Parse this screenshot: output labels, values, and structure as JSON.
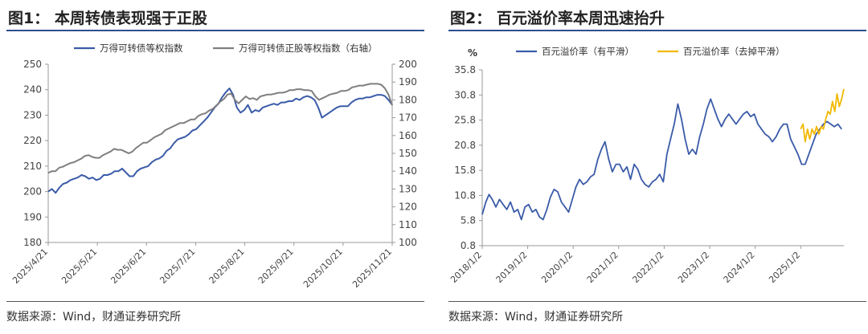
{
  "charts": [
    {
      "id": "p1",
      "title": "图1： 本周转债表现强于正股",
      "source": "数据来源：Wind，财通证券研究所",
      "chart_data": {
        "type": "line",
        "x_ticks": [
          "2025/4/21",
          "2025/5/21",
          "2025/6/21",
          "2025/7/21",
          "2025/8/21",
          "2025/9/21",
          "2025/10/21",
          "2025/11/21"
        ],
        "y_left": {
          "ticks": [
            180,
            190,
            200,
            210,
            220,
            230,
            240,
            250
          ],
          "range": [
            180,
            250
          ]
        },
        "y_right": {
          "ticks": [
            100,
            110,
            120,
            130,
            140,
            150,
            160,
            170,
            180,
            190,
            200
          ],
          "range": [
            100,
            200
          ]
        },
        "legend_position": "top",
        "grid": false,
        "series": [
          {
            "name": "万得可转债等权指数",
            "axis": "left",
            "color": "#3a5ba8",
            "values": [
              200,
              201,
              199.5,
              201.5,
              203,
              203.5,
              204.5,
              205,
              205.5,
              206.5,
              206,
              205,
              205.5,
              204.5,
              205,
              206.5,
              206.5,
              207,
              208,
              208,
              209,
              207.5,
              206,
              206,
              208,
              209,
              209.5,
              210,
              211.5,
              212.5,
              213,
              214,
              216,
              217,
              219,
              220.5,
              221,
              221.5,
              222.5,
              224,
              224.5,
              226,
              227.5,
              229,
              231,
              233,
              234.5,
              237,
              239,
              240.5,
              238,
              233,
              231,
              232,
              234,
              231,
              232,
              231.5,
              233,
              233.5,
              234,
              234.5,
              234,
              235,
              235,
              235.5,
              235.5,
              236.5,
              236,
              237,
              237.5,
              237,
              236,
              233,
              229,
              230,
              231,
              232,
              233,
              233.5,
              233.5,
              233.5,
              235,
              236,
              236.5,
              236.5,
              237,
              237,
              237.5,
              238,
              238,
              237.5,
              236,
              234
            ]
          },
          {
            "name": "万得可转债正股等权指数（右轴）",
            "axis": "right",
            "color": "#7f7f7f",
            "values": [
              139,
              140,
              140,
              142,
              142.5,
              143.5,
              144.5,
              145,
              146,
              147,
              148.5,
              149,
              148,
              147.5,
              147.5,
              149,
              150,
              151,
              152.5,
              152,
              152,
              151,
              150,
              151,
              153,
              154.5,
              156,
              156,
              157.5,
              159,
              160,
              161,
              163,
              164,
              165,
              166,
              167,
              167,
              168,
              169,
              169,
              171,
              172,
              172.5,
              174,
              175,
              177,
              179,
              180.5,
              183,
              183.5,
              180,
              178,
              180,
              182,
              180.5,
              181,
              180,
              182,
              182.5,
              183,
              183,
              183.5,
              184,
              184,
              184.5,
              185.5,
              185.5,
              186,
              186,
              185.5,
              185.5,
              185,
              182,
              180,
              181,
              182,
              183,
              183.5,
              184,
              185,
              185,
              185.5,
              187,
              187.5,
              188,
              188,
              188.5,
              189,
              189,
              189,
              188.5,
              186.5,
              183,
              177
            ]
          }
        ]
      }
    },
    {
      "id": "p2",
      "title": "图2： 百元溢价率本周迅速抬升",
      "source": "数据来源：Wind，财通证券研究所",
      "chart_data": {
        "type": "line",
        "ylabel": "%",
        "x_ticks": [
          "2018/1/2",
          "2019/1/2",
          "2020/1/2",
          "2021/1/2",
          "2022/1/2",
          "2023/1/2",
          "2024/1/2",
          "2025/1/2"
        ],
        "y": {
          "ticks": [
            0.8,
            5.8,
            10.8,
            15.8,
            20.8,
            25.8,
            30.8,
            35.8
          ],
          "range": [
            0.8,
            35.8
          ]
        },
        "x_range": [
          2018.0,
          2025.95
        ],
        "legend_position": "top",
        "grid": false,
        "series": [
          {
            "name": "百元溢价率（有平滑）",
            "color": "#3a5ba8",
            "x": [
              2018.0,
              2018.08,
              2018.15,
              2018.22,
              2018.3,
              2018.38,
              2018.46,
              2018.54,
              2018.62,
              2018.7,
              2018.78,
              2018.86,
              2018.94,
              2019.02,
              2019.1,
              2019.18,
              2019.26,
              2019.34,
              2019.42,
              2019.5,
              2019.58,
              2019.66,
              2019.74,
              2019.82,
              2019.9,
              2019.98,
              2020.06,
              2020.14,
              2020.22,
              2020.3,
              2020.38,
              2020.46,
              2020.54,
              2020.62,
              2020.7,
              2020.78,
              2020.86,
              2020.94,
              2021.02,
              2021.1,
              2021.18,
              2021.26,
              2021.34,
              2021.42,
              2021.5,
              2021.58,
              2021.66,
              2021.74,
              2021.82,
              2021.9,
              2021.98,
              2022.06,
              2022.14,
              2022.22,
              2022.3,
              2022.38,
              2022.46,
              2022.54,
              2022.62,
              2022.7,
              2022.78,
              2022.86,
              2022.94,
              2023.02,
              2023.1,
              2023.18,
              2023.26,
              2023.34,
              2023.42,
              2023.5,
              2023.58,
              2023.66,
              2023.74,
              2023.82,
              2023.9,
              2023.98,
              2024.06,
              2024.14,
              2024.22,
              2024.3,
              2024.38,
              2024.46,
              2024.54,
              2024.62,
              2024.7,
              2024.78,
              2024.86,
              2024.94,
              2025.02,
              2025.1,
              2025.18,
              2025.26,
              2025.34,
              2025.42,
              2025.5,
              2025.58,
              2025.66,
              2025.74,
              2025.82,
              2025.9
            ],
            "values": [
              7,
              9.5,
              11,
              10,
              8.5,
              10,
              9,
              8,
              9.5,
              7.5,
              8,
              6,
              8.5,
              9,
              7.5,
              8,
              6.5,
              6,
              8,
              10.5,
              12,
              11.5,
              9.5,
              8.5,
              7.5,
              10,
              12.5,
              14,
              13,
              13.5,
              14.5,
              15,
              18,
              20,
              21.5,
              18,
              15.5,
              17,
              17,
              15.5,
              16.5,
              14,
              17,
              16,
              14,
              13,
              12.5,
              13.5,
              14,
              15,
              13.5,
              19,
              22,
              25,
              29,
              26,
              22,
              19,
              20,
              19,
              22.5,
              25,
              28,
              30,
              28,
              26,
              24.5,
              26,
              27,
              26,
              25,
              26,
              27,
              27.5,
              26.5,
              27,
              25,
              24,
              23,
              22.5,
              21.5,
              22.5,
              24,
              25,
              25,
              22,
              20.5,
              19,
              17,
              17,
              19,
              21,
              23,
              24,
              25,
              25.5,
              25,
              24.5,
              25,
              24
            ]
          },
          {
            "name": "百元溢价率（去掉平滑）",
            "color": "#f2b800",
            "x": [
              2025.0,
              2025.05,
              2025.1,
              2025.15,
              2025.2,
              2025.25,
              2025.3,
              2025.35,
              2025.4,
              2025.45,
              2025.5,
              2025.55,
              2025.6,
              2025.65,
              2025.7,
              2025.75,
              2025.8,
              2025.85,
              2025.9,
              2025.95
            ],
            "values": [
              24,
              25,
              21.5,
              24,
              22,
              24,
              23,
              24.5,
              23,
              24.5,
              24,
              26,
              27.5,
              27,
              29.5,
              27.5,
              31,
              28.5,
              30,
              32
            ]
          }
        ]
      }
    }
  ]
}
